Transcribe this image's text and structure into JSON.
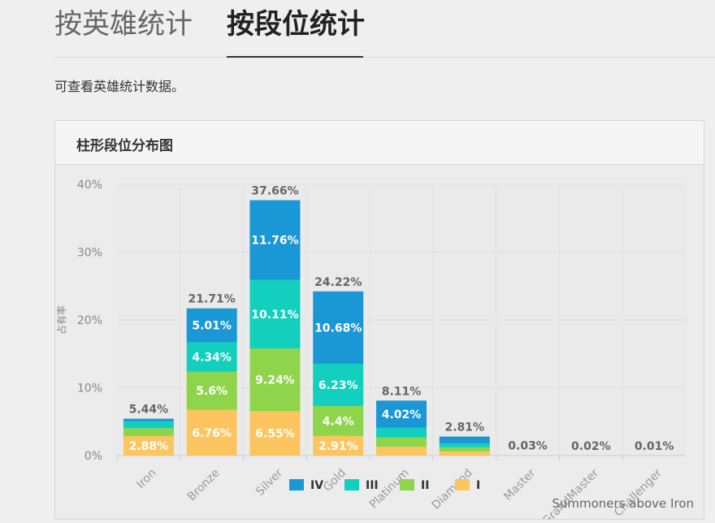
{
  "tabs": {
    "hero_label": "按英雄统计",
    "rank_label": "按段位统计"
  },
  "hint_text": "可查看英雄统计数据。",
  "card": {
    "title": "柱形段位分布图"
  },
  "chart_data": {
    "type": "bar",
    "stacked": true,
    "categories": [
      "Iron",
      "Bronze",
      "Silver",
      "Gold",
      "Platinum",
      "Diamond",
      "Master",
      "GrandMaster",
      "Challenger"
    ],
    "series": [
      {
        "name": "IV",
        "color": "#1a97d5",
        "values": [
          0.4,
          5.01,
          11.76,
          10.68,
          4.02,
          1.0,
          0,
          0,
          0
        ]
      },
      {
        "name": "III",
        "color": "#13cfbd",
        "values": [
          1.0,
          4.34,
          10.11,
          6.23,
          1.4,
          0.6,
          0,
          0,
          0
        ]
      },
      {
        "name": "II",
        "color": "#8ed54c",
        "values": [
          1.16,
          5.6,
          9.24,
          4.4,
          1.4,
          0.6,
          0,
          0,
          0
        ]
      },
      {
        "name": "I",
        "color": "#fcc55f",
        "values": [
          2.88,
          6.76,
          6.55,
          2.91,
          1.29,
          0.61,
          0,
          0,
          0
        ]
      }
    ],
    "segment_labels": [
      [
        "",
        "5.01%",
        "11.76%",
        "10.68%",
        "4.02%",
        "",
        "",
        "",
        ""
      ],
      [
        "",
        "4.34%",
        "10.11%",
        "6.23%",
        "",
        "",
        "",
        "",
        ""
      ],
      [
        "",
        "5.6%",
        "9.24%",
        "4.4%",
        "",
        "",
        "",
        "",
        ""
      ],
      [
        "2.88%",
        "6.76%",
        "6.55%",
        "2.91%",
        "",
        "",
        "",
        "",
        ""
      ]
    ],
    "totals": [
      5.44,
      21.71,
      37.66,
      24.22,
      8.11,
      2.81,
      0.03,
      0.02,
      0.01
    ],
    "total_labels": [
      "5.44%",
      "21.71%",
      "37.66%",
      "24.22%",
      "8.11%",
      "2.81%",
      "0.03%",
      "0.02%",
      "0.01%"
    ],
    "ylabel": "占有率",
    "yticks": [
      "0%",
      "10%",
      "20%",
      "30%",
      "40%"
    ],
    "ylim": [
      0,
      40
    ],
    "grid": true,
    "legend_position": "bottom",
    "annotation": "Summoners above Iron"
  }
}
